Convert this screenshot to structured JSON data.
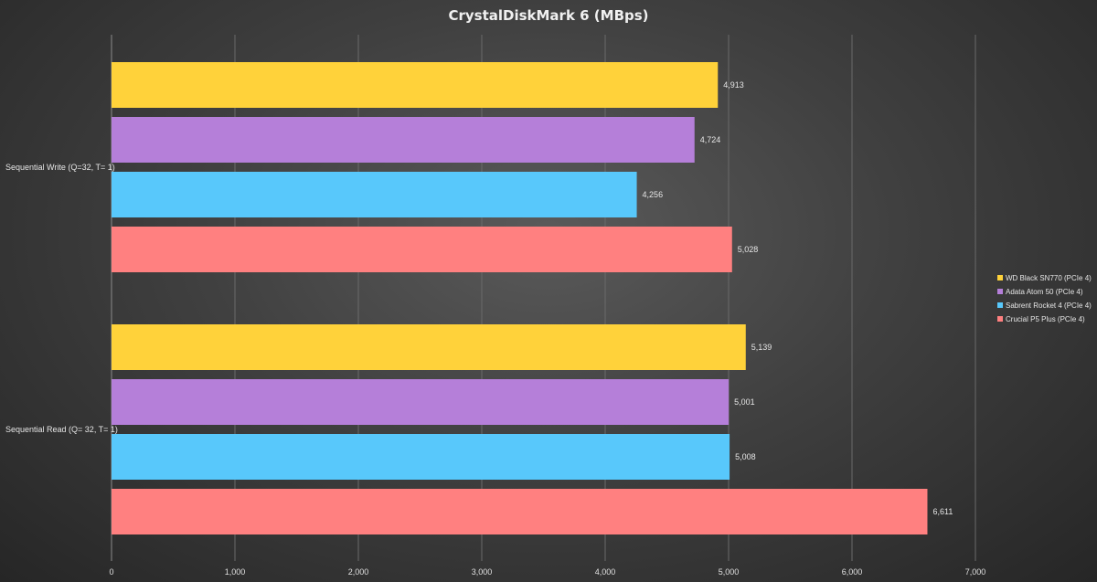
{
  "chart_data": {
    "type": "bar",
    "orientation": "horizontal",
    "title": "CrystalDiskMark  6 (MBps)",
    "categories": [
      "Sequential Write (Q=32, T= 1)",
      "Sequential Read (Q= 32, T= 1)"
    ],
    "series": [
      {
        "name": "WD Black SN770 (PCIe 4)",
        "color": "#ffd23a",
        "values": [
          4913,
          5139
        ],
        "labels": [
          "4,913",
          "5,139"
        ]
      },
      {
        "name": "Adata Atom 50 (PCIe 4)",
        "color": "#b57fd9",
        "values": [
          4724,
          5001
        ],
        "labels": [
          "4,724",
          "5,001"
        ]
      },
      {
        "name": "Sabrent Rocket 4 (PCIe 4)",
        "color": "#58c8fb",
        "values": [
          4256,
          5008
        ],
        "labels": [
          "4,256",
          "5,008"
        ]
      },
      {
        "name": "Crucial P5 Plus (PCIe 4)",
        "color": "#ff8080",
        "values": [
          5028,
          6611
        ],
        "labels": [
          "5,028",
          "6,611"
        ]
      }
    ],
    "xlim": [
      0,
      7000
    ],
    "xticks": [
      0,
      1000,
      2000,
      3000,
      4000,
      5000,
      6000,
      7000
    ],
    "xtick_labels": [
      "0",
      "1,000",
      "2,000",
      "3,000",
      "4,000",
      "5,000",
      "6,000",
      "7,000"
    ],
    "grid": true,
    "legend_position": "right"
  }
}
